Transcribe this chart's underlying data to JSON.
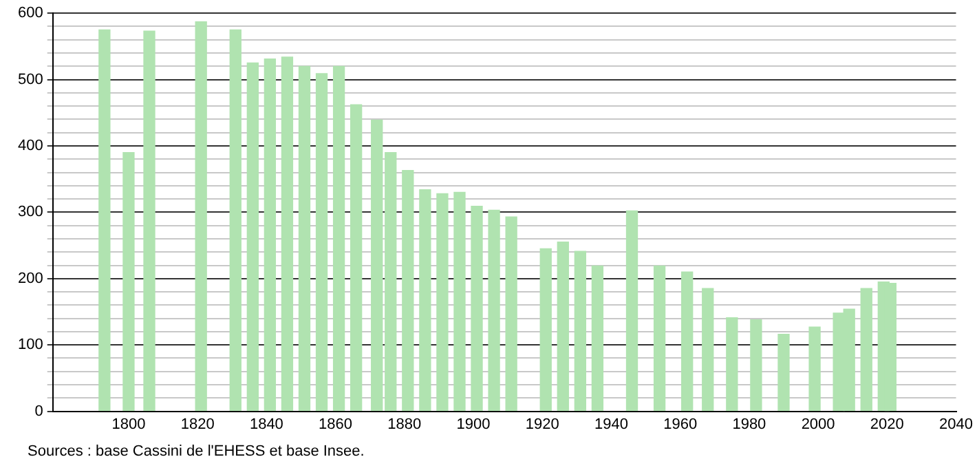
{
  "chart_data": {
    "type": "bar",
    "color": "#b0e3b0",
    "x": [
      1793,
      1800,
      1806,
      1821,
      1831,
      1836,
      1841,
      1846,
      1851,
      1856,
      1861,
      1866,
      1872,
      1876,
      1881,
      1886,
      1891,
      1896,
      1901,
      1906,
      1911,
      1921,
      1926,
      1931,
      1936,
      1946,
      1954,
      1962,
      1968,
      1975,
      1982,
      1990,
      1999,
      2006,
      2009,
      2014,
      2019,
      2021
    ],
    "values": [
      575,
      390,
      573,
      587,
      575,
      525,
      531,
      534,
      520,
      509,
      520,
      462,
      439,
      390,
      363,
      334,
      328,
      330,
      309,
      303,
      293,
      245,
      255,
      241,
      219,
      302,
      219,
      210,
      185,
      141,
      138,
      116,
      127,
      148,
      154,
      185,
      195,
      193
    ],
    "xlim": [
      1778,
      2040
    ],
    "xticks": [
      1800,
      1820,
      1840,
      1860,
      1880,
      1900,
      1920,
      1940,
      1960,
      1980,
      2000,
      2020,
      2040
    ],
    "ylim": [
      0,
      600
    ],
    "yticks": [
      0,
      {
        "value": 20,
        "label": null
      },
      {
        "value": 40,
        "label": null
      },
      {
        "value": 60,
        "label": null
      },
      {
        "value": 80,
        "label": null
      },
      100,
      {
        "value": 120,
        "label": null
      },
      {
        "value": 140,
        "label": null
      },
      {
        "value": 160,
        "label": null
      },
      {
        "value": 180,
        "label": null
      },
      200,
      {
        "value": 220,
        "label": null
      },
      {
        "value": 240,
        "label": null
      },
      {
        "value": 260,
        "label": null
      },
      {
        "value": 280,
        "label": null
      },
      300,
      {
        "value": 320,
        "label": null
      },
      {
        "value": 340,
        "label": null
      },
      {
        "value": 360,
        "label": null
      },
      {
        "value": 380,
        "label": null
      },
      400,
      {
        "value": 420,
        "label": null
      },
      {
        "value": 440,
        "label": null
      },
      {
        "value": 460,
        "label": null
      },
      {
        "value": 480,
        "label": null
      },
      500,
      {
        "value": 520,
        "label": null
      },
      {
        "value": 540,
        "label": null
      },
      {
        "value": 560,
        "label": null
      },
      {
        "value": 580,
        "label": null
      },
      600
    ],
    "grid": "y",
    "annotations": [
      "Sources : base Cassini de l'EHESS et base Insee."
    ]
  }
}
